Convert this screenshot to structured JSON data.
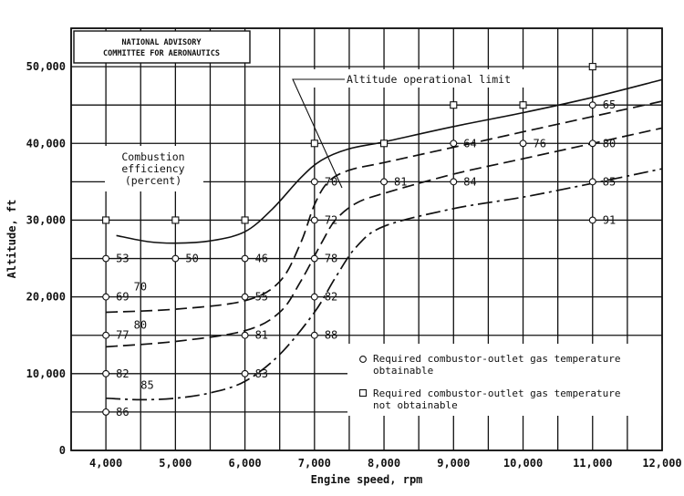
{
  "chart_data": {
    "type": "scatter",
    "header": [
      "NATIONAL ADVISORY",
      "COMMITTEE FOR AERONAUTICS"
    ],
    "xlabel": "Engine speed, rpm",
    "ylabel": "Altitude, ft",
    "xlim": [
      3500,
      12000
    ],
    "ylim": [
      0,
      55000
    ],
    "x_ticks": [
      {
        "v": 4000,
        "t": "4,000"
      },
      {
        "v": 5000,
        "t": "5,000"
      },
      {
        "v": 6000,
        "t": "6,000"
      },
      {
        "v": 7000,
        "t": "7,000"
      },
      {
        "v": 8000,
        "t": "8,000"
      },
      {
        "v": 9000,
        "t": "9,000"
      },
      {
        "v": 10000,
        "t": "10,000"
      },
      {
        "v": 11000,
        "t": "11,000"
      },
      {
        "v": 12000,
        "t": "12,000"
      }
    ],
    "y_ticks": [
      {
        "v": 0,
        "t": "0"
      },
      {
        "v": 10000,
        "t": "10,000"
      },
      {
        "v": 20000,
        "t": "20,000"
      },
      {
        "v": 30000,
        "t": "30,000"
      },
      {
        "v": 40000,
        "t": "40,000"
      },
      {
        "v": 50000,
        "t": "50,000"
      }
    ],
    "grid": true,
    "annotations": {
      "limit": "Altitude operational limit",
      "efficiency": [
        "Combustion",
        "efficiency",
        "(percent)"
      ]
    },
    "legend": [
      {
        "marker": "circle",
        "lines": [
          "Required combustor-outlet gas temperature",
          "obtainable"
        ]
      },
      {
        "marker": "square",
        "lines": [
          "Required combustor-outlet gas temperature",
          "not obtainable"
        ]
      }
    ],
    "obtainable_points": [
      {
        "x": 4000,
        "y": 25000,
        "label": "53"
      },
      {
        "x": 4000,
        "y": 20000,
        "label": "69"
      },
      {
        "x": 4000,
        "y": 15000,
        "label": "77"
      },
      {
        "x": 4000,
        "y": 10000,
        "label": "82"
      },
      {
        "x": 4000,
        "y": 5000,
        "label": "86"
      },
      {
        "x": 5000,
        "y": 25000,
        "label": "50"
      },
      {
        "x": 6000,
        "y": 25000,
        "label": "46"
      },
      {
        "x": 6000,
        "y": 20000,
        "label": "55"
      },
      {
        "x": 6000,
        "y": 15000,
        "label": "81"
      },
      {
        "x": 6000,
        "y": 10000,
        "label": "83"
      },
      {
        "x": 7000,
        "y": 35000,
        "label": "70"
      },
      {
        "x": 7000,
        "y": 30000,
        "label": "72"
      },
      {
        "x": 7000,
        "y": 25000,
        "label": "78"
      },
      {
        "x": 7000,
        "y": 20000,
        "label": "82"
      },
      {
        "x": 7000,
        "y": 15000,
        "label": "88"
      },
      {
        "x": 8000,
        "y": 35000,
        "label": "81"
      },
      {
        "x": 9000,
        "y": 40000,
        "label": "64"
      },
      {
        "x": 9000,
        "y": 35000,
        "label": "84"
      },
      {
        "x": 10000,
        "y": 40000,
        "label": "76"
      },
      {
        "x": 11000,
        "y": 45000,
        "label": "65"
      },
      {
        "x": 11000,
        "y": 40000,
        "label": "80"
      },
      {
        "x": 11000,
        "y": 35000,
        "label": "85"
      },
      {
        "x": 11000,
        "y": 30000,
        "label": "91"
      }
    ],
    "not_obtainable_points": [
      {
        "x": 4000,
        "y": 30000
      },
      {
        "x": 5000,
        "y": 30000
      },
      {
        "x": 6000,
        "y": 30000
      },
      {
        "x": 7000,
        "y": 40000
      },
      {
        "x": 8000,
        "y": 40000
      },
      {
        "x": 9000,
        "y": 45000
      },
      {
        "x": 10000,
        "y": 45000
      },
      {
        "x": 11000,
        "y": 50000
      }
    ],
    "series": [
      {
        "style": "solid",
        "x": [
          4150,
          4600,
          5000,
          5500,
          6000,
          6400,
          6800,
          7100,
          7500,
          8000,
          9000,
          10000,
          11000,
          12000
        ],
        "y": [
          28000,
          27200,
          27000,
          27300,
          28500,
          31500,
          35500,
          37800,
          39300,
          40200,
          42200,
          44000,
          46000,
          48300
        ]
      },
      {
        "style": "dashed",
        "label": "70",
        "x": [
          4000,
          5000,
          6000,
          6500,
          6800,
          7000,
          7200,
          7500,
          8000,
          9000,
          10000,
          11000,
          12000
        ],
        "y": [
          18000,
          18400,
          19500,
          22000,
          27000,
          32000,
          35000,
          36500,
          37500,
          39500,
          41500,
          43500,
          45500
        ]
      },
      {
        "style": "dashed",
        "label": "80",
        "x": [
          4000,
          5000,
          6000,
          6500,
          6800,
          7100,
          7300,
          7600,
          8000,
          9000,
          10000,
          11000,
          12000
        ],
        "y": [
          13500,
          14200,
          15600,
          18000,
          22000,
          27000,
          30000,
          32200,
          33500,
          36000,
          38000,
          40000,
          42000
        ]
      },
      {
        "style": "dashdot",
        "label": "85",
        "x": [
          4000,
          4500,
          5000,
          5500,
          6000,
          6500,
          7000,
          7300,
          7600,
          8000,
          9000,
          10000,
          11000,
          12000
        ],
        "y": [
          6800,
          6600,
          6800,
          7500,
          9000,
          12500,
          18000,
          22500,
          26500,
          29200,
          31500,
          33000,
          34800,
          36700
        ]
      }
    ],
    "curve_labels": [
      {
        "text": "70",
        "x": 4400,
        "y": 20600
      },
      {
        "text": "80",
        "x": 4400,
        "y": 15600
      },
      {
        "text": "85",
        "x": 4500,
        "y": 7800
      }
    ]
  }
}
